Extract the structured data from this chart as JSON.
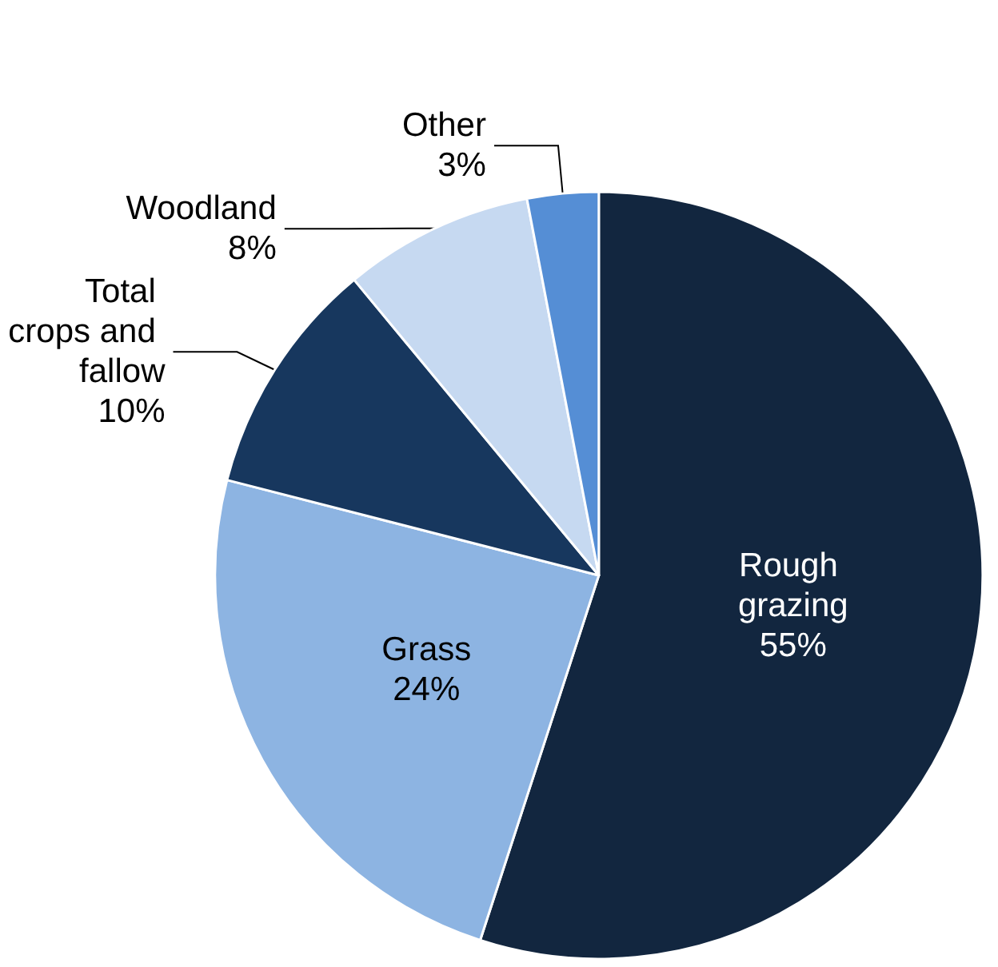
{
  "chart_data": {
    "type": "pie",
    "categories": [
      "Rough grazing",
      "Grass",
      "Total crops and fallow",
      "Woodland",
      "Other"
    ],
    "values": [
      55,
      24,
      10,
      8,
      3
    ],
    "colors": [
      "#12263f",
      "#8db4e2",
      "#17375e",
      "#c6d9f1",
      "#558ed5"
    ],
    "value_labels": [
      "55%",
      "24%",
      "10%",
      "8%",
      "3%"
    ],
    "legend": false
  }
}
